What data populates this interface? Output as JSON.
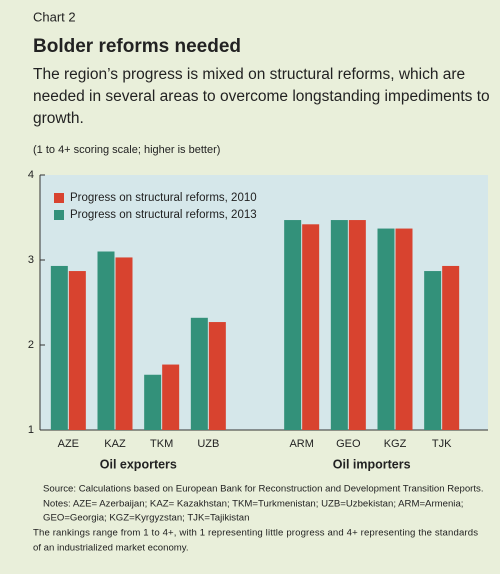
{
  "chart_data": {
    "type": "bar",
    "kicker": "Chart 2",
    "title": "Bolder reforms needed",
    "subtitle": [
      "The region’s progress is mixed on structural reforms, which are",
      "needed in several areas to overcome longstanding impediments to",
      "growth."
    ],
    "unit_note": "(1 to 4+ scoring scale; higher is better)",
    "categories": [
      "AZE",
      "KAZ",
      "TKM",
      "UZB",
      null,
      "ARM",
      "GEO",
      "KGZ",
      "TJK"
    ],
    "group_labels": [
      "Oil exporters",
      "Oil importers"
    ],
    "series": [
      {
        "name": "Progress on structural reforms, 2013",
        "color": "#33917a",
        "values": [
          2.93,
          3.1,
          1.65,
          2.32,
          null,
          3.47,
          3.47,
          3.37,
          2.87
        ]
      },
      {
        "name": "Progress on structural reforms, 2010",
        "color": "#d8432f",
        "values": [
          2.87,
          3.03,
          1.77,
          2.27,
          null,
          3.42,
          3.47,
          3.37,
          2.93
        ]
      }
    ],
    "legend_order": [
      1,
      0
    ],
    "legend": "top-left",
    "ylim": [
      1,
      4
    ],
    "yticks": [
      1,
      2,
      3,
      4
    ],
    "grid": false,
    "notes": [
      "Source: Calculations based on European Bank for Reconstruction and Development Transition Reports.",
      "Notes: AZE= Azerbaijan; KAZ= Kazakhstan; TKM=Turkmenistan; UZB=Uzbekistan; ARM=Armenia;",
      "GEO=Georgia; KGZ=Kyrgyzstan; TJK=Tajikistan",
      "The rankings range from 1 to 4+, with 1 representing little progress and 4+ representing the standards",
      "of an industrialized market economy."
    ]
  }
}
